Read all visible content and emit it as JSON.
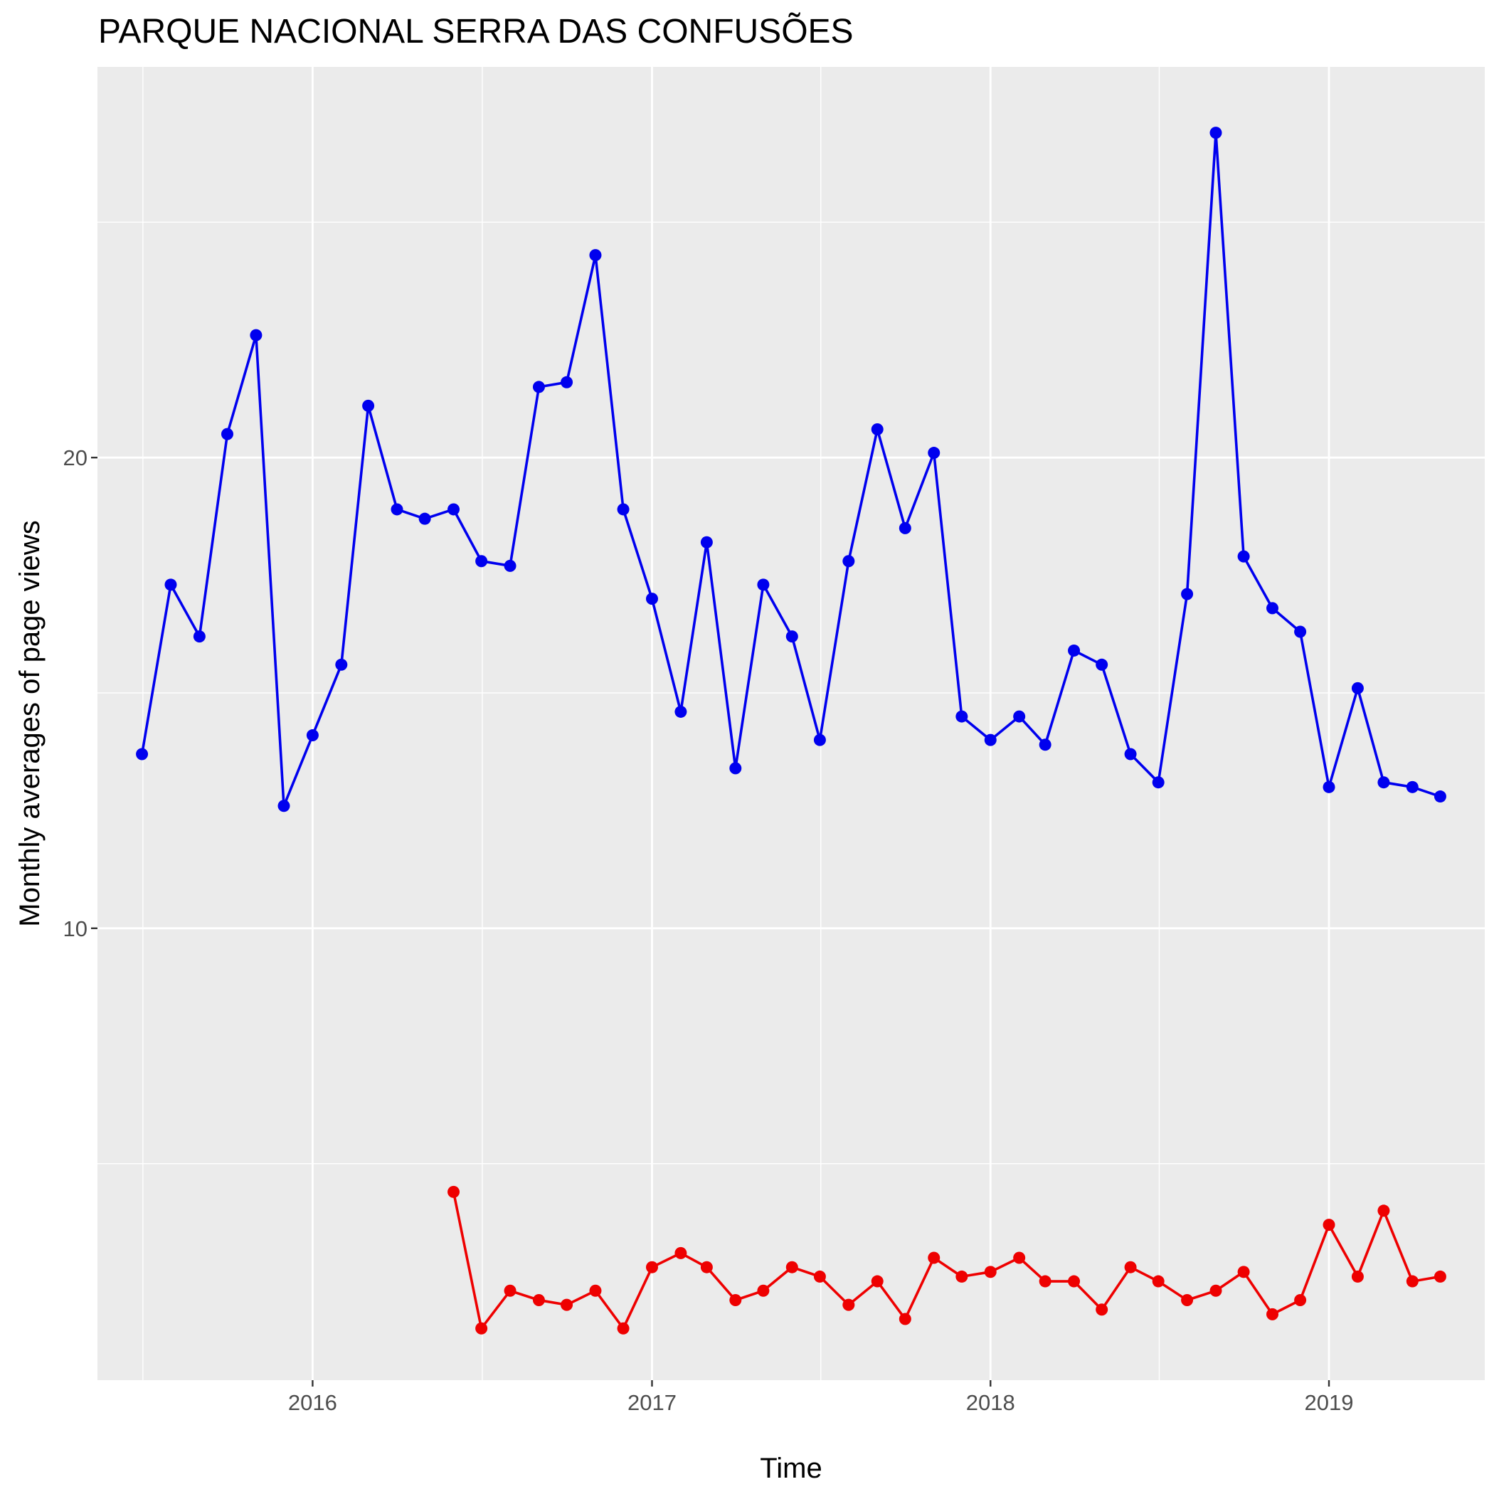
{
  "chart_data": {
    "type": "line",
    "title": "PARQUE NACIONAL SERRA DAS CONFUSÕES",
    "xlabel": "Time",
    "ylabel": "Monthly averages of page views",
    "y_ticks": [
      10,
      20
    ],
    "x_ticks": [
      "2016",
      "2017",
      "2018",
      "2019"
    ],
    "x_range": [
      "2015-05-14",
      "2019-06-18"
    ],
    "ylim": [
      0.4,
      28.3
    ],
    "grid": true,
    "background": "#ebebeb",
    "series": [
      {
        "color": "#0000ee",
        "points": [
          [
            "2015-07-01",
            13.7
          ],
          [
            "2015-08-01",
            17.3
          ],
          [
            "2015-09-01",
            16.2
          ],
          [
            "2015-10-01",
            20.5
          ],
          [
            "2015-11-01",
            22.6
          ],
          [
            "2015-12-01",
            12.6
          ],
          [
            "2016-01-01",
            14.1
          ],
          [
            "2016-02-01",
            15.6
          ],
          [
            "2016-03-01",
            21.1
          ],
          [
            "2016-04-01",
            18.9
          ],
          [
            "2016-05-01",
            18.7
          ],
          [
            "2016-06-01",
            18.9
          ],
          [
            "2016-07-01",
            17.8
          ],
          [
            "2016-08-01",
            17.7
          ],
          [
            "2016-09-01",
            21.5
          ],
          [
            "2016-10-01",
            21.6
          ],
          [
            "2016-11-01",
            24.3
          ],
          [
            "2016-12-01",
            18.9
          ],
          [
            "2017-01-01",
            17.0
          ],
          [
            "2017-02-01",
            14.6
          ],
          [
            "2017-03-01",
            18.2
          ],
          [
            "2017-04-01",
            13.4
          ],
          [
            "2017-05-01",
            17.3
          ],
          [
            "2017-06-01",
            16.2
          ],
          [
            "2017-07-01",
            14.0
          ],
          [
            "2017-08-01",
            17.8
          ],
          [
            "2017-09-01",
            20.6
          ],
          [
            "2017-10-01",
            18.5
          ],
          [
            "2017-11-01",
            20.1
          ],
          [
            "2017-12-01",
            14.5
          ],
          [
            "2018-01-01",
            14.0
          ],
          [
            "2018-02-01",
            14.5
          ],
          [
            "2018-03-01",
            13.9
          ],
          [
            "2018-04-01",
            15.9
          ],
          [
            "2018-05-01",
            15.6
          ],
          [
            "2018-06-01",
            13.7
          ],
          [
            "2018-07-01",
            13.1
          ],
          [
            "2018-08-01",
            17.1
          ],
          [
            "2018-09-01",
            26.9
          ],
          [
            "2018-10-01",
            17.9
          ],
          [
            "2018-11-01",
            16.8
          ],
          [
            "2018-12-01",
            16.3
          ],
          [
            "2019-01-01",
            13.0
          ],
          [
            "2019-02-01",
            15.1
          ],
          [
            "2019-03-01",
            13.1
          ],
          [
            "2019-04-01",
            13.0
          ],
          [
            "2019-05-01",
            12.8
          ]
        ]
      },
      {
        "color": "#ee0000",
        "points": [
          [
            "2016-06-01",
            4.4
          ],
          [
            "2016-07-01",
            1.5
          ],
          [
            "2016-08-01",
            2.3
          ],
          [
            "2016-09-01",
            2.1
          ],
          [
            "2016-10-01",
            2.0
          ],
          [
            "2016-11-01",
            2.3
          ],
          [
            "2016-12-01",
            1.5
          ],
          [
            "2017-01-01",
            2.8
          ],
          [
            "2017-02-01",
            3.1
          ],
          [
            "2017-03-01",
            2.8
          ],
          [
            "2017-04-01",
            2.1
          ],
          [
            "2017-05-01",
            2.3
          ],
          [
            "2017-06-01",
            2.8
          ],
          [
            "2017-07-01",
            2.6
          ],
          [
            "2017-08-01",
            2.0
          ],
          [
            "2017-09-01",
            2.5
          ],
          [
            "2017-10-01",
            1.7
          ],
          [
            "2017-11-01",
            3.0
          ],
          [
            "2017-12-01",
            2.6
          ],
          [
            "2018-01-01",
            2.7
          ],
          [
            "2018-02-01",
            3.0
          ],
          [
            "2018-03-01",
            2.5
          ],
          [
            "2018-04-01",
            2.5
          ],
          [
            "2018-05-01",
            1.9
          ],
          [
            "2018-06-01",
            2.8
          ],
          [
            "2018-07-01",
            2.5
          ],
          [
            "2018-08-01",
            2.1
          ],
          [
            "2018-09-01",
            2.3
          ],
          [
            "2018-10-01",
            2.7
          ],
          [
            "2018-11-01",
            1.8
          ],
          [
            "2018-12-01",
            2.1
          ],
          [
            "2019-01-01",
            3.7
          ],
          [
            "2019-02-01",
            2.6
          ],
          [
            "2019-03-01",
            4.0
          ],
          [
            "2019-04-01",
            2.5
          ],
          [
            "2019-05-01",
            2.6
          ]
        ]
      }
    ]
  }
}
